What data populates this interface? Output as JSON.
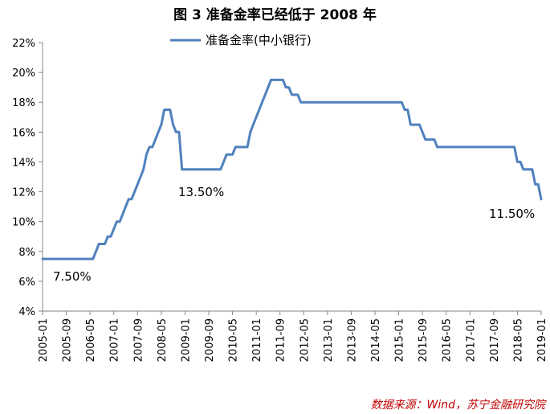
{
  "chart_data": {
    "type": "line",
    "title": "图 3   准备金率已经低于 2008 年",
    "ylim": [
      4,
      22
    ],
    "yticks": [
      "4%",
      "6%",
      "8%",
      "10%",
      "12%",
      "14%",
      "16%",
      "18%",
      "20%",
      "22%"
    ],
    "xticks": [
      "2005-01",
      "2005-09",
      "2006-05",
      "2007-01",
      "2007-09",
      "2008-05",
      "2009-01",
      "2009-09",
      "2010-05",
      "2011-01",
      "2011-09",
      "2012-05",
      "2013-01",
      "2013-09",
      "2014-05",
      "2015-01",
      "2015-09",
      "2016-05",
      "2017-01",
      "2017-09",
      "2018-05",
      "2019-01"
    ],
    "grid": false,
    "legend_position": "top",
    "series": [
      {
        "name": "准备金率(中小银行)",
        "color": "#4f81bd",
        "x": [
          "2005-01",
          "2006-06",
          "2006-07",
          "2006-08",
          "2006-09",
          "2006-10",
          "2006-11",
          "2006-12",
          "2007-01",
          "2007-02",
          "2007-03",
          "2007-04",
          "2007-05",
          "2007-06",
          "2007-07",
          "2007-08",
          "2007-09",
          "2007-10",
          "2007-11",
          "2007-12",
          "2008-01",
          "2008-02",
          "2008-03",
          "2008-04",
          "2008-05",
          "2008-06",
          "2008-07",
          "2008-08",
          "2008-09",
          "2008-10",
          "2008-11",
          "2008-12",
          "2009-01",
          "2010-01",
          "2010-02",
          "2010-03",
          "2010-04",
          "2010-05",
          "2010-06",
          "2010-07",
          "2010-08",
          "2010-09",
          "2010-10",
          "2010-11",
          "2010-12",
          "2011-01",
          "2011-02",
          "2011-03",
          "2011-04",
          "2011-05",
          "2011-06",
          "2011-07",
          "2011-08",
          "2011-09",
          "2011-10",
          "2011-11",
          "2011-12",
          "2012-01",
          "2012-02",
          "2012-03",
          "2012-04",
          "2012-05",
          "2015-02",
          "2015-03",
          "2015-04",
          "2015-05",
          "2015-06",
          "2015-07",
          "2015-08",
          "2015-09",
          "2015-10",
          "2015-11",
          "2015-12",
          "2016-01",
          "2016-02",
          "2016-03",
          "2018-04",
          "2018-05",
          "2018-06",
          "2018-07",
          "2018-08",
          "2018-09",
          "2018-10",
          "2018-11",
          "2018-12",
          "2019-01"
        ],
        "values": [
          7.5,
          7.5,
          8.0,
          8.5,
          8.5,
          8.5,
          9.0,
          9.0,
          9.5,
          10.0,
          10.0,
          10.5,
          11.0,
          11.5,
          11.5,
          12.0,
          12.5,
          13.0,
          13.5,
          14.5,
          15.0,
          15.0,
          15.5,
          16.0,
          16.5,
          17.5,
          17.5,
          17.5,
          16.5,
          16.0,
          16.0,
          13.5,
          13.5,
          13.5,
          14.0,
          14.5,
          14.5,
          14.5,
          15.0,
          15.0,
          15.0,
          15.0,
          15.0,
          16.0,
          16.5,
          17.0,
          17.5,
          18.0,
          18.5,
          19.0,
          19.5,
          19.5,
          19.5,
          19.5,
          19.5,
          19.0,
          19.0,
          18.5,
          18.5,
          18.5,
          18.0,
          18.0,
          18.0,
          17.5,
          17.5,
          16.5,
          16.5,
          16.5,
          16.5,
          16.0,
          15.5,
          15.5,
          15.5,
          15.5,
          15.0,
          15.0,
          15.0,
          14.0,
          14.0,
          13.5,
          13.5,
          13.5,
          13.5,
          12.5,
          12.5,
          11.5
        ]
      }
    ],
    "annotations": [
      "7.50%",
      "13.50%",
      "11.50%"
    ]
  },
  "source": "数据来源：Wind，苏宁金融研究院"
}
